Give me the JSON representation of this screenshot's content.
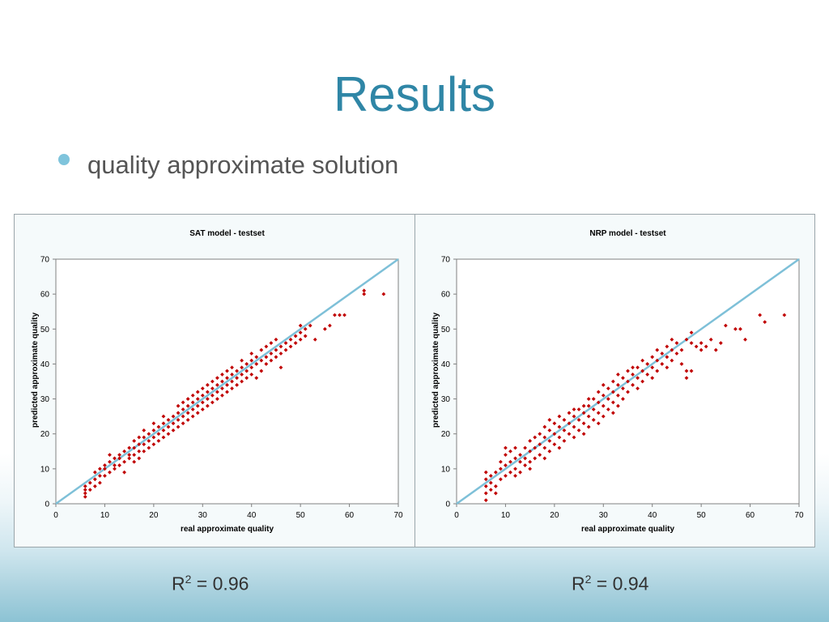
{
  "slide": {
    "title": "Results",
    "bullet": "quality approximate solution"
  },
  "r2_labels": [
    {
      "base": "R",
      "sup": "2",
      "rest": " = 0.96"
    },
    {
      "base": "R",
      "sup": "2",
      "rest": " = 0.94"
    }
  ],
  "colors": {
    "title": "#2f86a6",
    "bullet": "#7fc4dc",
    "points": "#c00000",
    "diagonal": "#7ec0d8"
  },
  "chart_data": [
    {
      "type": "scatter",
      "title": "SAT model - testset",
      "xlabel": "real approximate quality",
      "ylabel": "predicted approximate quality",
      "xlim": [
        0,
        70
      ],
      "ylim": [
        0,
        70
      ],
      "xticks": [
        0,
        10,
        20,
        30,
        40,
        50,
        60,
        70
      ],
      "yticks": [
        0,
        10,
        20,
        30,
        40,
        50,
        60,
        70
      ],
      "reference_line": [
        [
          0,
          0
        ],
        [
          70,
          70
        ]
      ],
      "grid": false,
      "points": [
        [
          6,
          2
        ],
        [
          6,
          3
        ],
        [
          6,
          4
        ],
        [
          6,
          5
        ],
        [
          7,
          4
        ],
        [
          7,
          6
        ],
        [
          8,
          5
        ],
        [
          8,
          7
        ],
        [
          8,
          9
        ],
        [
          9,
          6
        ],
        [
          9,
          8
        ],
        [
          9,
          10
        ],
        [
          10,
          8
        ],
        [
          10,
          10
        ],
        [
          10,
          11
        ],
        [
          11,
          9
        ],
        [
          11,
          12
        ],
        [
          11,
          14
        ],
        [
          12,
          10
        ],
        [
          12,
          11
        ],
        [
          12,
          13
        ],
        [
          13,
          11
        ],
        [
          13,
          13
        ],
        [
          13,
          14
        ],
        [
          14,
          9
        ],
        [
          14,
          12
        ],
        [
          14,
          15
        ],
        [
          15,
          13
        ],
        [
          15,
          14
        ],
        [
          15,
          16
        ],
        [
          16,
          12
        ],
        [
          16,
          14
        ],
        [
          16,
          16
        ],
        [
          16,
          18
        ],
        [
          17,
          13
        ],
        [
          17,
          15
        ],
        [
          17,
          17
        ],
        [
          17,
          19
        ],
        [
          18,
          15
        ],
        [
          18,
          17
        ],
        [
          18,
          19
        ],
        [
          18,
          21
        ],
        [
          19,
          16
        ],
        [
          19,
          18
        ],
        [
          19,
          20
        ],
        [
          20,
          17
        ],
        [
          20,
          19
        ],
        [
          20,
          21
        ],
        [
          20,
          23
        ],
        [
          21,
          18
        ],
        [
          21,
          20
        ],
        [
          21,
          22
        ],
        [
          22,
          19
        ],
        [
          22,
          21
        ],
        [
          22,
          23
        ],
        [
          22,
          25
        ],
        [
          23,
          20
        ],
        [
          23,
          22
        ],
        [
          23,
          24
        ],
        [
          24,
          21
        ],
        [
          24,
          23
        ],
        [
          24,
          25
        ],
        [
          25,
          22
        ],
        [
          25,
          24
        ],
        [
          25,
          26
        ],
        [
          25,
          28
        ],
        [
          26,
          23
        ],
        [
          26,
          25
        ],
        [
          26,
          27
        ],
        [
          26,
          29
        ],
        [
          27,
          24
        ],
        [
          27,
          26
        ],
        [
          27,
          28
        ],
        [
          27,
          30
        ],
        [
          28,
          25
        ],
        [
          28,
          27
        ],
        [
          28,
          29
        ],
        [
          28,
          31
        ],
        [
          29,
          26
        ],
        [
          29,
          28
        ],
        [
          29,
          30
        ],
        [
          29,
          32
        ],
        [
          30,
          27
        ],
        [
          30,
          29
        ],
        [
          30,
          31
        ],
        [
          30,
          33
        ],
        [
          31,
          28
        ],
        [
          31,
          30
        ],
        [
          31,
          32
        ],
        [
          31,
          34
        ],
        [
          32,
          29
        ],
        [
          32,
          31
        ],
        [
          32,
          33
        ],
        [
          32,
          35
        ],
        [
          33,
          30
        ],
        [
          33,
          32
        ],
        [
          33,
          34
        ],
        [
          33,
          36
        ],
        [
          34,
          31
        ],
        [
          34,
          33
        ],
        [
          34,
          35
        ],
        [
          34,
          37
        ],
        [
          35,
          32
        ],
        [
          35,
          34
        ],
        [
          35,
          36
        ],
        [
          35,
          38
        ],
        [
          36,
          33
        ],
        [
          36,
          35
        ],
        [
          36,
          37
        ],
        [
          36,
          39
        ],
        [
          37,
          34
        ],
        [
          37,
          36
        ],
        [
          37,
          38
        ],
        [
          38,
          35
        ],
        [
          38,
          37
        ],
        [
          38,
          39
        ],
        [
          38,
          41
        ],
        [
          39,
          36
        ],
        [
          39,
          38
        ],
        [
          39,
          40
        ],
        [
          40,
          37
        ],
        [
          40,
          39
        ],
        [
          40,
          41
        ],
        [
          40,
          43
        ],
        [
          41,
          36
        ],
        [
          41,
          40
        ],
        [
          41,
          42
        ],
        [
          42,
          38
        ],
        [
          42,
          41
        ],
        [
          42,
          44
        ],
        [
          43,
          40
        ],
        [
          43,
          42
        ],
        [
          43,
          45
        ],
        [
          44,
          41
        ],
        [
          44,
          43
        ],
        [
          44,
          46
        ],
        [
          45,
          42
        ],
        [
          45,
          44
        ],
        [
          45,
          47
        ],
        [
          46,
          39
        ],
        [
          46,
          43
        ],
        [
          46,
          45
        ],
        [
          47,
          44
        ],
        [
          47,
          46
        ],
        [
          48,
          45
        ],
        [
          48,
          47
        ],
        [
          49,
          46
        ],
        [
          49,
          48
        ],
        [
          50,
          47
        ],
        [
          50,
          49
        ],
        [
          50,
          51
        ],
        [
          51,
          48
        ],
        [
          51,
          50
        ],
        [
          52,
          51
        ],
        [
          53,
          47
        ],
        [
          55,
          50
        ],
        [
          56,
          51
        ],
        [
          57,
          54
        ],
        [
          58,
          54
        ],
        [
          59,
          54
        ],
        [
          63,
          60
        ],
        [
          63,
          61
        ],
        [
          67,
          60
        ]
      ]
    },
    {
      "type": "scatter",
      "title": "NRP model - testset",
      "xlabel": "real approximate quality",
      "ylabel": "predicted approximate quality",
      "xlim": [
        0,
        70
      ],
      "ylim": [
        0,
        70
      ],
      "xticks": [
        0,
        10,
        20,
        30,
        40,
        50,
        60,
        70
      ],
      "yticks": [
        0,
        10,
        20,
        30,
        40,
        50,
        60,
        70
      ],
      "reference_line": [
        [
          0,
          0
        ],
        [
          70,
          70
        ]
      ],
      "grid": false,
      "points": [
        [
          6,
          1
        ],
        [
          6,
          3
        ],
        [
          6,
          5
        ],
        [
          6,
          7
        ],
        [
          6,
          9
        ],
        [
          7,
          4
        ],
        [
          7,
          6
        ],
        [
          7,
          8
        ],
        [
          8,
          3
        ],
        [
          8,
          5
        ],
        [
          8,
          9
        ],
        [
          9,
          7
        ],
        [
          9,
          10
        ],
        [
          9,
          12
        ],
        [
          10,
          8
        ],
        [
          10,
          11
        ],
        [
          10,
          14
        ],
        [
          10,
          16
        ],
        [
          11,
          9
        ],
        [
          11,
          12
        ],
        [
          11,
          15
        ],
        [
          12,
          8
        ],
        [
          12,
          10
        ],
        [
          12,
          13
        ],
        [
          12,
          16
        ],
        [
          13,
          9
        ],
        [
          13,
          12
        ],
        [
          13,
          14
        ],
        [
          14,
          11
        ],
        [
          14,
          13
        ],
        [
          14,
          16
        ],
        [
          15,
          10
        ],
        [
          15,
          12
        ],
        [
          15,
          15
        ],
        [
          15,
          18
        ],
        [
          16,
          13
        ],
        [
          16,
          16
        ],
        [
          16,
          19
        ],
        [
          17,
          14
        ],
        [
          17,
          17
        ],
        [
          17,
          20
        ],
        [
          18,
          13
        ],
        [
          18,
          16
        ],
        [
          18,
          19
        ],
        [
          18,
          22
        ],
        [
          19,
          15
        ],
        [
          19,
          18
        ],
        [
          19,
          21
        ],
        [
          19,
          24
        ],
        [
          20,
          17
        ],
        [
          20,
          20
        ],
        [
          20,
          23
        ],
        [
          21,
          16
        ],
        [
          21,
          19
        ],
        [
          21,
          22
        ],
        [
          21,
          25
        ],
        [
          22,
          18
        ],
        [
          22,
          21
        ],
        [
          22,
          24
        ],
        [
          23,
          20
        ],
        [
          23,
          23
        ],
        [
          23,
          26
        ],
        [
          24,
          19
        ],
        [
          24,
          22
        ],
        [
          24,
          25
        ],
        [
          24,
          27
        ],
        [
          25,
          21
        ],
        [
          25,
          24
        ],
        [
          25,
          27
        ],
        [
          26,
          20
        ],
        [
          26,
          23
        ],
        [
          26,
          26
        ],
        [
          26,
          28
        ],
        [
          27,
          22
        ],
        [
          27,
          25
        ],
        [
          27,
          28
        ],
        [
          27,
          30
        ],
        [
          28,
          24
        ],
        [
          28,
          27
        ],
        [
          28,
          30
        ],
        [
          29,
          23
        ],
        [
          29,
          26
        ],
        [
          29,
          29
        ],
        [
          29,
          32
        ],
        [
          30,
          25
        ],
        [
          30,
          28
        ],
        [
          30,
          31
        ],
        [
          30,
          34
        ],
        [
          31,
          27
        ],
        [
          31,
          30
        ],
        [
          31,
          33
        ],
        [
          32,
          26
        ],
        [
          32,
          29
        ],
        [
          32,
          32
        ],
        [
          32,
          35
        ],
        [
          33,
          28
        ],
        [
          33,
          31
        ],
        [
          33,
          34
        ],
        [
          33,
          37
        ],
        [
          34,
          30
        ],
        [
          34,
          33
        ],
        [
          34,
          36
        ],
        [
          35,
          32
        ],
        [
          35,
          35
        ],
        [
          35,
          38
        ],
        [
          36,
          34
        ],
        [
          36,
          37
        ],
        [
          36,
          39
        ],
        [
          37,
          33
        ],
        [
          37,
          36
        ],
        [
          37,
          39
        ],
        [
          38,
          35
        ],
        [
          38,
          38
        ],
        [
          38,
          41
        ],
        [
          39,
          37
        ],
        [
          39,
          40
        ],
        [
          40,
          36
        ],
        [
          40,
          39
        ],
        [
          40,
          42
        ],
        [
          41,
          38
        ],
        [
          41,
          41
        ],
        [
          41,
          44
        ],
        [
          42,
          40
        ],
        [
          42,
          43
        ],
        [
          43,
          39
        ],
        [
          43,
          42
        ],
        [
          43,
          45
        ],
        [
          44,
          41
        ],
        [
          44,
          44
        ],
        [
          44,
          47
        ],
        [
          45,
          43
        ],
        [
          45,
          46
        ],
        [
          46,
          40
        ],
        [
          46,
          44
        ],
        [
          47,
          36
        ],
        [
          47,
          38
        ],
        [
          47,
          47
        ],
        [
          48,
          38
        ],
        [
          48,
          46
        ],
        [
          48,
          49
        ],
        [
          49,
          45
        ],
        [
          50,
          44
        ],
        [
          50,
          46
        ],
        [
          51,
          45
        ],
        [
          52,
          47
        ],
        [
          53,
          44
        ],
        [
          54,
          46
        ],
        [
          55,
          51
        ],
        [
          57,
          50
        ],
        [
          58,
          50
        ],
        [
          59,
          47
        ],
        [
          62,
          54
        ],
        [
          63,
          52
        ],
        [
          67,
          54
        ]
      ]
    }
  ]
}
